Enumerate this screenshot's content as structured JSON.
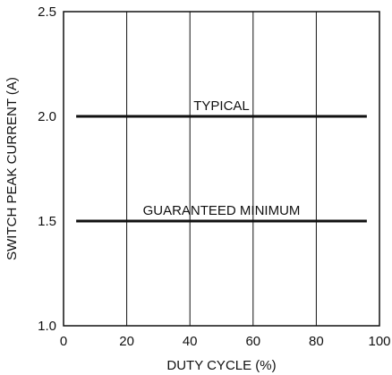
{
  "chart_data": {
    "type": "line",
    "xlabel": "DUTY CYCLE (%)",
    "ylabel": "SWITCH PEAK CURRENT (A)",
    "xlim": [
      0,
      100
    ],
    "ylim": [
      1.0,
      2.5
    ],
    "x_ticks": [
      0,
      20,
      40,
      60,
      80,
      100
    ],
    "x_tick_labels": [
      "0",
      "20",
      "40",
      "60",
      "80",
      "100"
    ],
    "y_ticks": [
      1.0,
      1.5,
      2.0,
      2.5
    ],
    "y_tick_labels": [
      "1.0",
      "1.5",
      "2.0",
      "2.5"
    ],
    "grid": "vertical",
    "series": [
      {
        "name": "TYPICAL",
        "x": [
          4,
          96
        ],
        "y": [
          2.0,
          2.0
        ]
      },
      {
        "name": "GUARANTEED MINIMUM",
        "x": [
          4,
          96
        ],
        "y": [
          1.5,
          1.5
        ]
      }
    ],
    "colors": {
      "line": "#111111",
      "grid": "#111111",
      "background": "#ffffff"
    }
  }
}
